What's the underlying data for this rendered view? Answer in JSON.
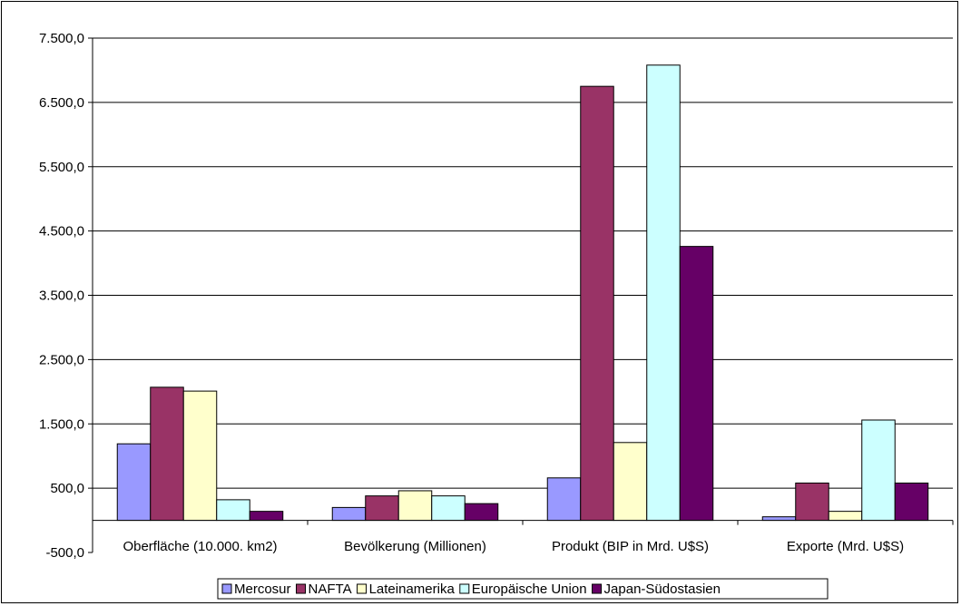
{
  "chart_data": {
    "type": "bar",
    "title": "",
    "xlabel": "",
    "ylabel": "",
    "ylim": [
      -500,
      7500
    ],
    "yticks": [
      -500,
      500,
      1500,
      2500,
      3500,
      4500,
      5500,
      6500,
      7500
    ],
    "ytick_labels": [
      "-500,0",
      "500,0",
      "1.500,0",
      "2.500,0",
      "3.500,0",
      "4.500,0",
      "5.500,0",
      "6.500,0",
      "7.500,0"
    ],
    "grid": "horizontal",
    "legend_position": "bottom",
    "categories": [
      "Oberfläche (10.000. km2)",
      "Bevölkerung (Millionen)",
      "Produkt (BIP in Mrd. U$S)",
      "Exporte (Mrd. U$S)"
    ],
    "series": [
      {
        "name": "Mercosur",
        "color": "#9999ff",
        "values": [
          1190,
          200,
          660,
          55
        ]
      },
      {
        "name": "NAFTA",
        "color": "#993366",
        "values": [
          2070,
          380,
          6750,
          580
        ]
      },
      {
        "name": "Lateinamerika",
        "color": "#ffffcc",
        "values": [
          2010,
          460,
          1210,
          140
        ]
      },
      {
        "name": "Europäische Union",
        "color": "#ccffff",
        "values": [
          320,
          380,
          7080,
          1560
        ]
      },
      {
        "name": "Japan-Südostasien",
        "color": "#660066",
        "values": [
          140,
          260,
          4260,
          580
        ]
      }
    ]
  }
}
